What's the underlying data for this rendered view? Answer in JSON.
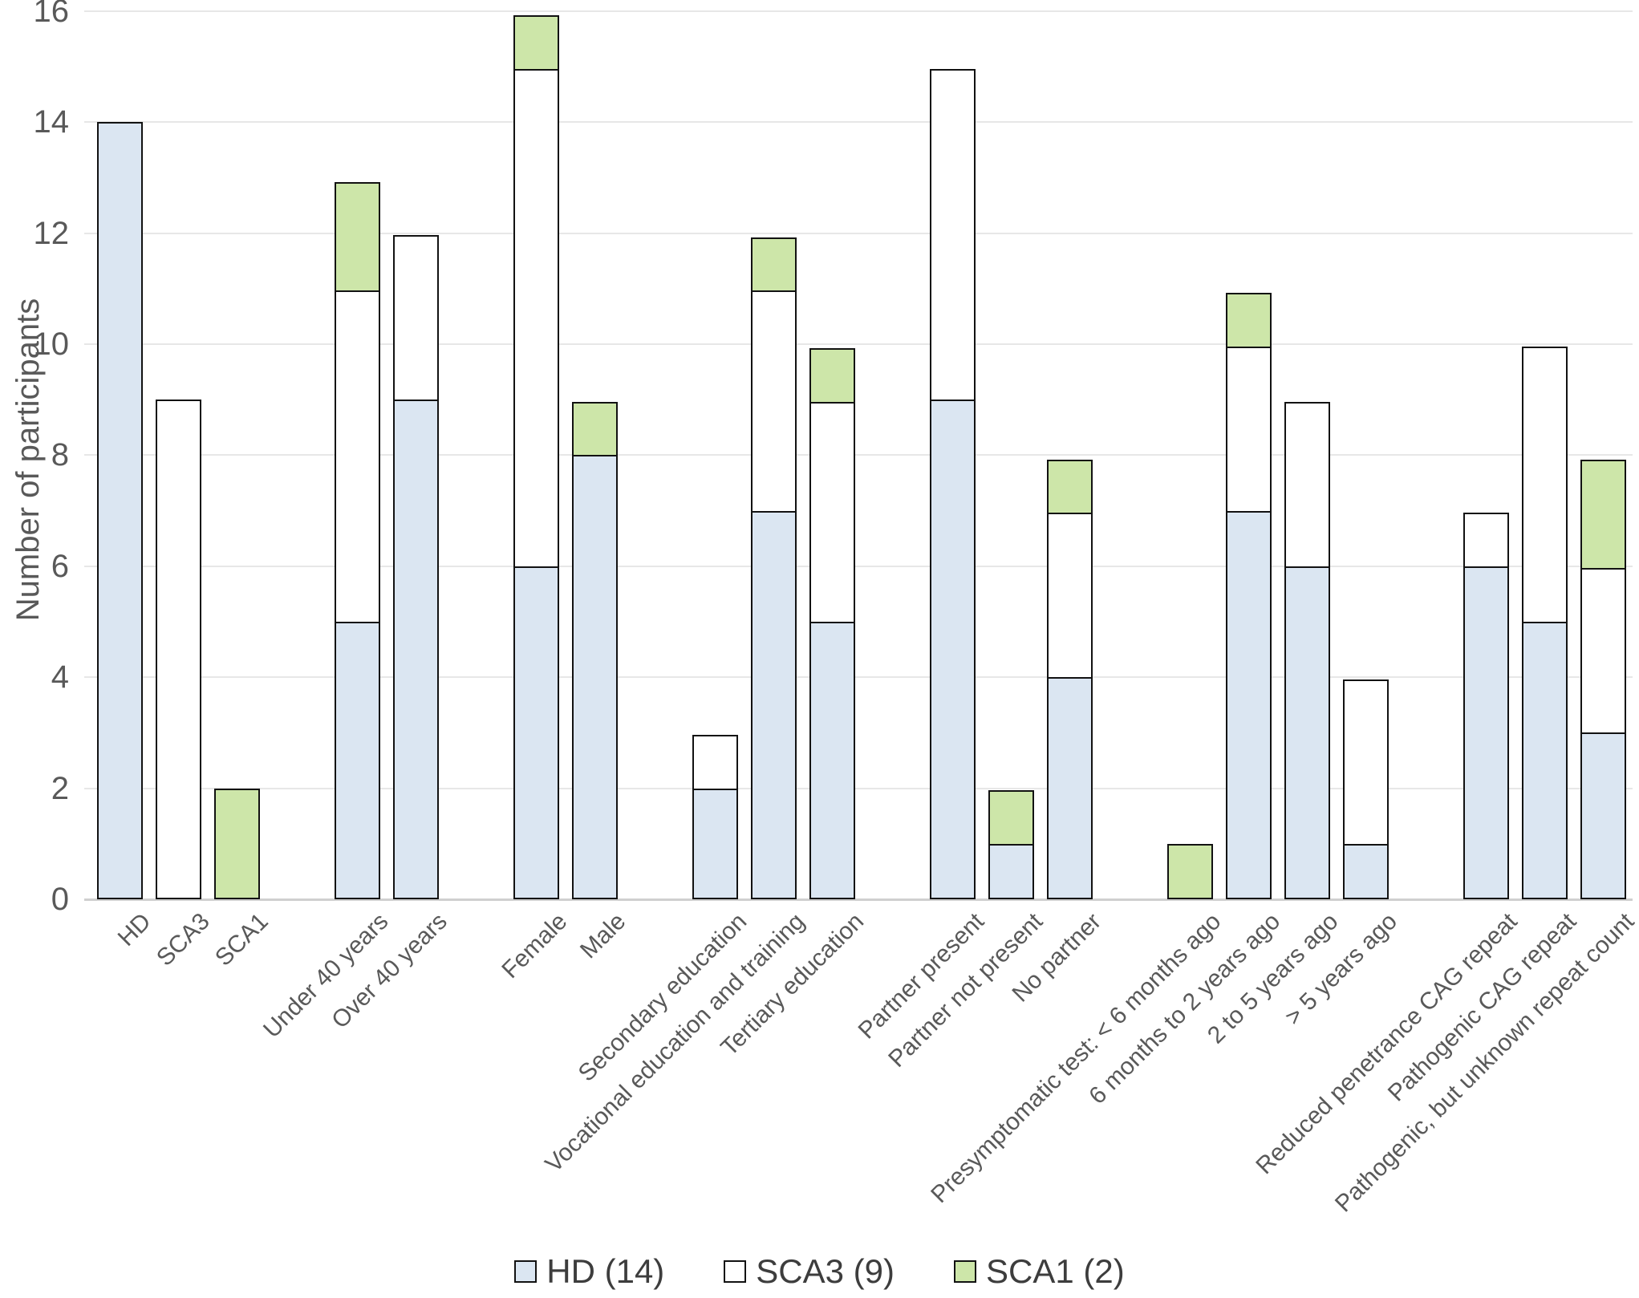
{
  "page": {
    "background": "#ffffff"
  },
  "chart_data": {
    "type": "bar",
    "stacked": true,
    "title": "",
    "xlabel": "",
    "ylabel": "Number of participants",
    "ylim": [
      0,
      16
    ],
    "ytick_step": 2,
    "yticks": [
      "0",
      "2",
      "4",
      "6",
      "8",
      "10",
      "12",
      "14",
      "16"
    ],
    "grid": true,
    "legend_position": "bottom-center",
    "categories": [
      "HD",
      "SCA3",
      "SCA1",
      "Under 40 years",
      "Over 40 years",
      "Female",
      "Male",
      "Secondary education",
      "Vocational education and training",
      "Tertiary education",
      "Partner present",
      "Partner not present",
      "No partner",
      "Presymptomatic test: < 6 months ago",
      "6 months to 2 years ago",
      "2 to 5 years ago",
      "> 5 years ago",
      "Reduced penetrance CAG repeat",
      "Pathogenic CAG repeat",
      "Pathogenic, but unknown repeat count"
    ],
    "group_sizes": [
      3,
      2,
      2,
      3,
      3,
      4,
      3
    ],
    "series": [
      {
        "name": "HD (14)",
        "color": "#dbe6f2",
        "values": [
          14,
          0,
          0,
          5,
          9,
          6,
          8,
          2,
          7,
          5,
          9,
          1,
          4,
          0,
          7,
          6,
          1,
          6,
          5,
          3
        ]
      },
      {
        "name": "SCA3 (9)",
        "color": "#ffffff",
        "values": [
          0,
          9,
          0,
          6,
          3,
          9,
          0,
          1,
          4,
          4,
          6,
          0,
          3,
          0,
          3,
          3,
          3,
          1,
          5,
          3
        ]
      },
      {
        "name": "SCA1 (2)",
        "color": "#cde6a9",
        "values": [
          0,
          0,
          2,
          2,
          0,
          1,
          1,
          0,
          1,
          1,
          0,
          1,
          1,
          1,
          1,
          0,
          0,
          0,
          0,
          2
        ]
      }
    ],
    "border_color": "#121212",
    "gridline_color": "#e7e7e7",
    "axis_line_color": "#cfcfcf",
    "text_color": "#595959"
  }
}
